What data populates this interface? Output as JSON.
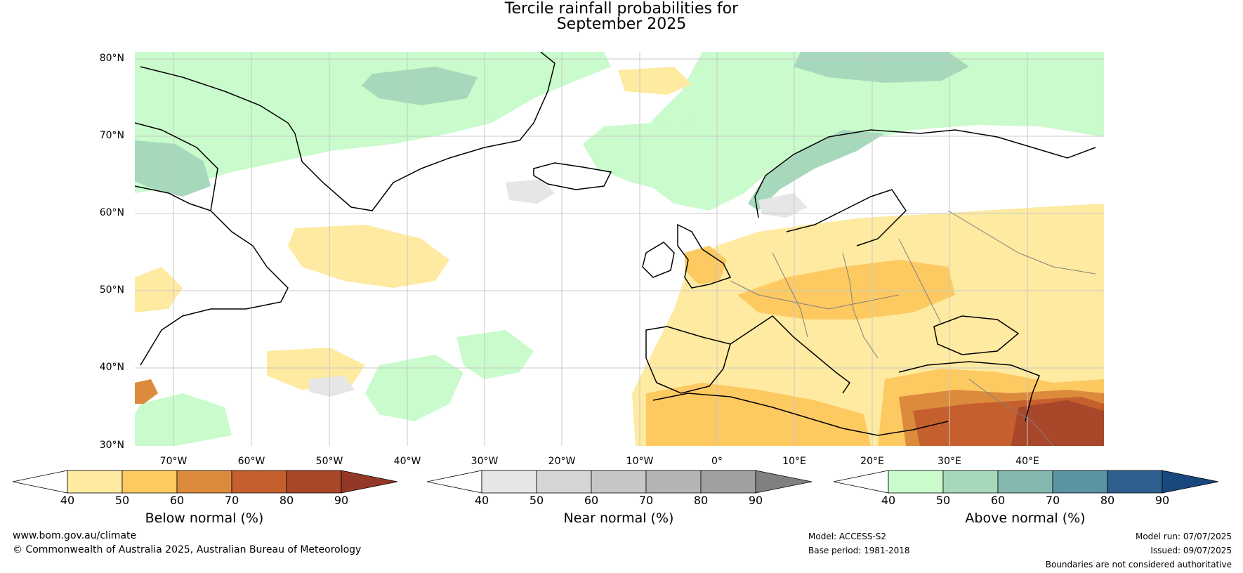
{
  "title": {
    "line1": "Tercile rainfall probabilities for",
    "line2": "September 2025"
  },
  "map": {
    "lat_labels": [
      "80°N",
      "70°N",
      "60°N",
      "50°N",
      "40°N",
      "30°N"
    ],
    "lon_labels": [
      "70°W",
      "60°W",
      "50°W",
      "40°W",
      "30°W",
      "20°W",
      "10°W",
      "0°",
      "10°E",
      "20°E",
      "30°E",
      "40°E"
    ],
    "colors": {
      "ocean_white": "#ffffff",
      "coastline": "#000000",
      "borders": "#808080",
      "gridline": "#c8c8c8"
    }
  },
  "colorbars": [
    {
      "title": "Below normal (%)",
      "ticks": [
        "40",
        "50",
        "60",
        "70",
        "80",
        "90"
      ],
      "colors": [
        "#ffffff",
        "#feeaa0",
        "#fdc961",
        "#dc8b3d",
        "#c65f2e",
        "#a8472a",
        "#933826"
      ]
    },
    {
      "title": "Near normal (%)",
      "ticks": [
        "40",
        "50",
        "60",
        "70",
        "80",
        "90"
      ],
      "colors": [
        "#ffffff",
        "#e6e6e6",
        "#d5d5d5",
        "#c6c6c6",
        "#b4b4b4",
        "#a0a0a0",
        "#808080"
      ]
    },
    {
      "title": "Above normal (%)",
      "ticks": [
        "40",
        "50",
        "60",
        "70",
        "80",
        "90"
      ],
      "colors": [
        "#ffffff",
        "#c9fbcc",
        "#a6d8bc",
        "#84b8af",
        "#5b93a2",
        "#2f5f8f",
        "#18487e"
      ]
    }
  ],
  "footer": {
    "website": "www.bom.gov.au/climate",
    "copyright": "© Commonwealth of Australia 2025, Australian Bureau of Meteorology",
    "model": "Model: ACCESS-S2",
    "base_period": "Base period: 1981-2018",
    "model_run": "Model run: 07/07/2025",
    "issued": "Issued: 09/07/2025",
    "disclaimer": "Boundaries are not considered authoritative"
  }
}
